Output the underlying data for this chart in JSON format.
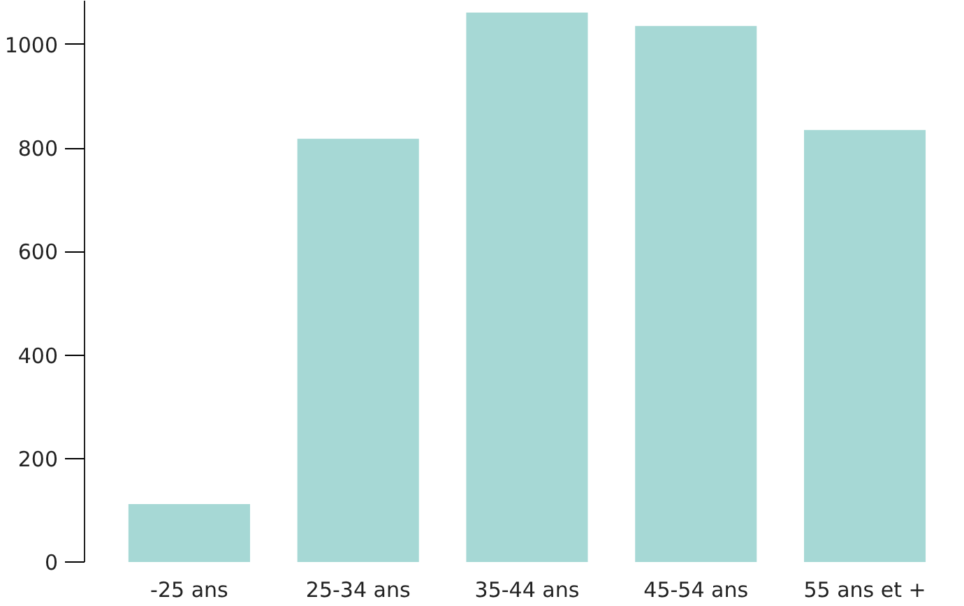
{
  "chart_data": {
    "type": "bar",
    "categories": [
      "-25 ans",
      "25-34 ans",
      "35-44 ans",
      "45-54 ans",
      "55 ans et +"
    ],
    "values": [
      112,
      818,
      1062,
      1036,
      835
    ],
    "color": "#a6d8d5",
    "ylim": [
      0,
      1085
    ],
    "yticks": [
      0,
      200,
      400,
      600,
      800,
      1000
    ],
    "grid": false
  }
}
